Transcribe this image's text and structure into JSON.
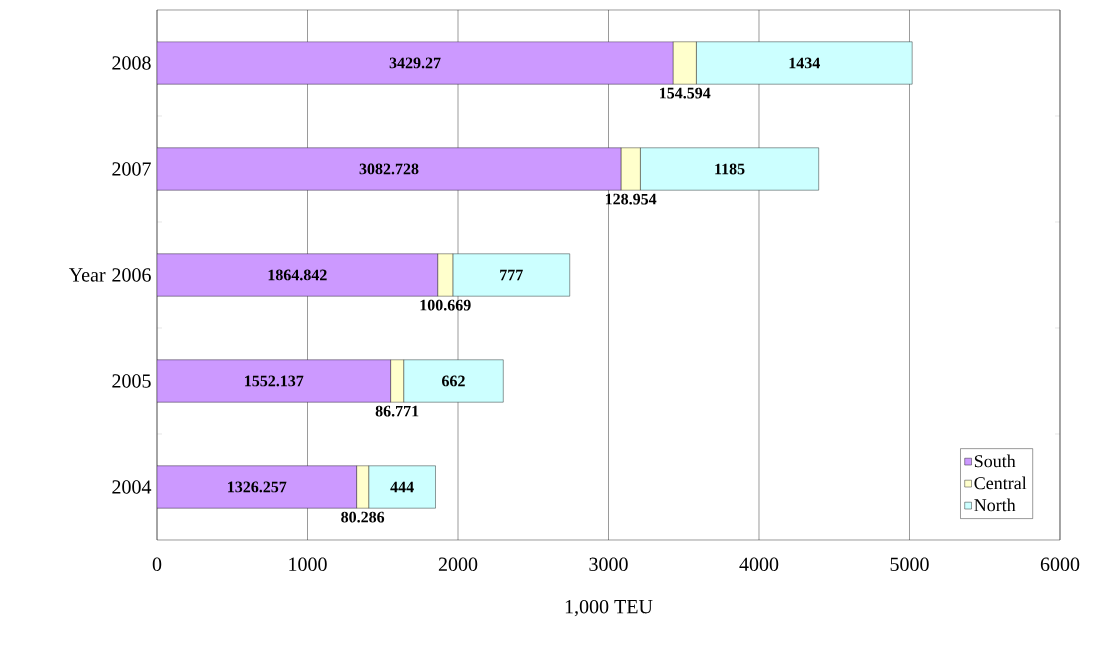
{
  "chart_data": {
    "type": "bar",
    "orientation": "horizontal",
    "stacked": true,
    "xlabel": "1,000 TEU",
    "ylabel": "Year",
    "categories": [
      "2008",
      "2007",
      "2006",
      "2005",
      "2004"
    ],
    "series": [
      {
        "name": "South",
        "color": "#cc99ff",
        "values": [
          3429.27,
          3082.728,
          1864.842,
          1552.137,
          1326.257
        ]
      },
      {
        "name": "Central",
        "color": "#ffffcc",
        "values": [
          154.594,
          128.954,
          100.669,
          86.771,
          80.286
        ]
      },
      {
        "name": "North",
        "color": "#ccffff",
        "values": [
          1434,
          1185,
          777,
          662,
          444
        ]
      }
    ],
    "xlim": [
      0,
      6000
    ],
    "xticks": [
      0,
      1000,
      2000,
      3000,
      4000,
      5000,
      6000
    ],
    "grid": "x",
    "legend": "bottom right",
    "data_labels": true
  }
}
